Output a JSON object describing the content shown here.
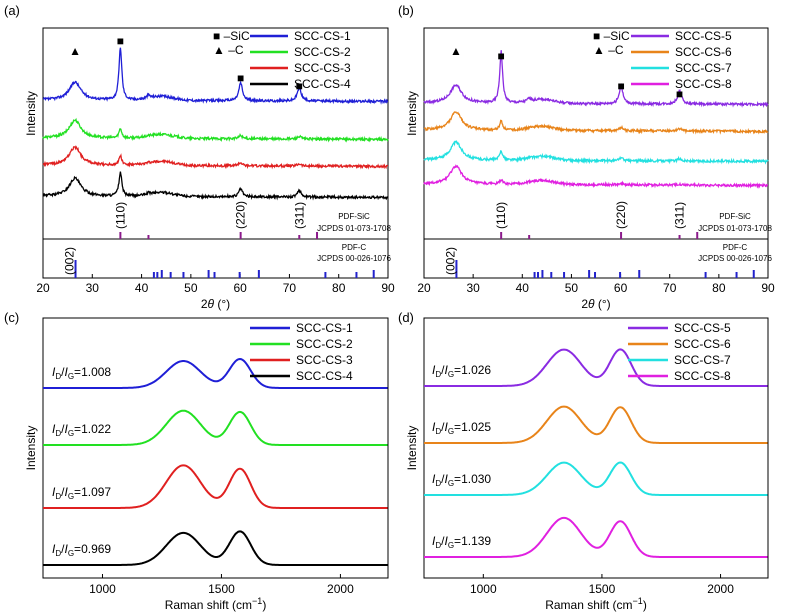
{
  "chart_data": [
    {
      "panel_label": "(a)",
      "type": "line",
      "xlabel_parts": [
        "2",
        "θ",
        " (°)"
      ],
      "ylabel": "Intensity",
      "xlim": [
        20,
        90
      ],
      "xticks": [
        20,
        30,
        40,
        50,
        60,
        70,
        80,
        90
      ],
      "legend_position": "top-right",
      "symbol_legend": [
        {
          "marker": "■",
          "label": "–SiC"
        },
        {
          "marker": "▲",
          "label": "–C"
        }
      ],
      "series": [
        {
          "name": "SCC-CS-1",
          "color": "#1f1fd6",
          "sic_peaks": "strong"
        },
        {
          "name": "SCC-CS-2",
          "color": "#22e022",
          "sic_peaks": "weak"
        },
        {
          "name": "SCC-CS-3",
          "color": "#e02020",
          "sic_peaks": "weak"
        },
        {
          "name": "SCC-CS-4",
          "color": "#000000",
          "sic_peaks": "medium"
        }
      ],
      "peak_markers": [
        {
          "symbol": "▲",
          "x": 26.5,
          "phase": "C"
        },
        {
          "symbol": "■",
          "x": 35.7,
          "phase": "SiC"
        },
        {
          "symbol": "■",
          "x": 60.1,
          "phase": "SiC"
        },
        {
          "symbol": "■",
          "x": 72.0,
          "phase": "SiC"
        }
      ],
      "reference_SiC": {
        "name": "PDF-SiC",
        "card": "JCPDS 01-073-1708",
        "color": "#8b1a8b",
        "lines": [
          35.7,
          41.4,
          60.1,
          72.0,
          75.6
        ],
        "indices": [
          {
            "x": 35.7,
            "label": "(110)"
          },
          {
            "x": 60.1,
            "label": "(220)"
          },
          {
            "x": 72.0,
            "label": "(311)"
          }
        ]
      },
      "reference_C": {
        "name": "PDF-C",
        "card": "JCPDS 00-026-1076",
        "color": "#2222cc",
        "lines": [
          26.6,
          42.5,
          43.2,
          44.1,
          45.9,
          48.5,
          53.6,
          54.8,
          59.9,
          63.8,
          77.3,
          83.6,
          87.1
        ],
        "indices": [
          {
            "x": 26.6,
            "label": "(002)"
          }
        ]
      }
    },
    {
      "panel_label": "(b)",
      "type": "line",
      "xlabel_parts": [
        "2",
        "θ",
        " (°)"
      ],
      "ylabel": "Intensity",
      "xlim": [
        20,
        90
      ],
      "xticks": [
        20,
        30,
        40,
        50,
        60,
        70,
        80,
        90
      ],
      "legend_position": "top-right",
      "symbol_legend": [
        {
          "marker": "■",
          "label": "–SiC"
        },
        {
          "marker": "▲",
          "label": "–C"
        }
      ],
      "series": [
        {
          "name": "SCC-CS-5",
          "color": "#8a2be2",
          "sic_peaks": "strong"
        },
        {
          "name": "SCC-CS-6",
          "color": "#e8841a",
          "sic_peaks": "weak"
        },
        {
          "name": "SCC-CS-7",
          "color": "#22e0e0",
          "sic_peaks": "weak"
        },
        {
          "name": "SCC-CS-8",
          "color": "#e020e0",
          "sic_peaks": "very-weak"
        }
      ],
      "peak_markers": [
        {
          "symbol": "▲",
          "x": 26.5,
          "phase": "C"
        },
        {
          "symbol": "■",
          "x": 35.7,
          "phase": "SiC"
        },
        {
          "symbol": "■",
          "x": 60.1,
          "phase": "SiC"
        },
        {
          "symbol": "■",
          "x": 72.0,
          "phase": "SiC"
        }
      ],
      "reference_SiC": {
        "name": "PDF-SiC",
        "card": "JCPDS 01-073-1708",
        "color": "#8b1a8b",
        "lines": [
          35.7,
          41.4,
          60.1,
          72.0,
          75.6
        ],
        "indices": [
          {
            "x": 35.7,
            "label": "(110)"
          },
          {
            "x": 60.1,
            "label": "(220)"
          },
          {
            "x": 72.0,
            "label": "(311)"
          }
        ]
      },
      "reference_C": {
        "name": "PDF-C",
        "card": "JCPDS 00-026-1076",
        "color": "#2222cc",
        "lines": [
          26.6,
          42.5,
          43.2,
          44.1,
          45.9,
          48.5,
          53.6,
          54.8,
          59.9,
          63.8,
          77.3,
          83.6,
          87.1
        ],
        "indices": [
          {
            "x": 26.6,
            "label": "(002)"
          }
        ]
      }
    },
    {
      "panel_label": "(c)",
      "type": "line",
      "xlabel": "Raman shift (cm",
      "xlabel_sup": "−1",
      "xlabel_end": ")",
      "ylabel": "Intensity",
      "xlim": [
        750,
        2200
      ],
      "xticks": [
        1000,
        1500,
        2000
      ],
      "legend_position": "top-right",
      "series": [
        {
          "name": "SCC-CS-1",
          "color": "#1f1fd6",
          "ratio": "1.008",
          "d_height": 1.0,
          "g_height": 1.07
        },
        {
          "name": "SCC-CS-2",
          "color": "#22e022",
          "ratio": "1.022",
          "d_height": 1.27,
          "g_height": 1.22
        },
        {
          "name": "SCC-CS-3",
          "color": "#e02020",
          "ratio": "1.097",
          "d_height": 1.58,
          "g_height": 1.45
        },
        {
          "name": "SCC-CS-4",
          "color": "#000000",
          "ratio": "0.969",
          "d_height": 1.19,
          "g_height": 1.24
        }
      ]
    },
    {
      "panel_label": "(d)",
      "type": "line",
      "xlabel": "Raman shift (cm",
      "xlabel_sup": "−1",
      "xlabel_end": ")",
      "ylabel": "Intensity",
      "xlim": [
        750,
        2200
      ],
      "xticks": [
        1000,
        1500,
        2000
      ],
      "legend_position": "top-right",
      "series": [
        {
          "name": "SCC-CS-5",
          "color": "#8a2be2",
          "ratio": "1.026",
          "d_height": 1.35,
          "g_height": 1.35
        },
        {
          "name": "SCC-CS-6",
          "color": "#e8841a",
          "ratio": "1.025",
          "d_height": 1.35,
          "g_height": 1.32
        },
        {
          "name": "SCC-CS-7",
          "color": "#22e0e0",
          "ratio": "1.030",
          "d_height": 1.2,
          "g_height": 1.2
        },
        {
          "name": "SCC-CS-8",
          "color": "#e020e0",
          "ratio": "1.139",
          "d_height": 1.45,
          "g_height": 1.32
        }
      ]
    }
  ],
  "ratio_label": {
    "I": "I",
    "D": "D",
    "slash": "/",
    "G": "G",
    "eq": "="
  }
}
